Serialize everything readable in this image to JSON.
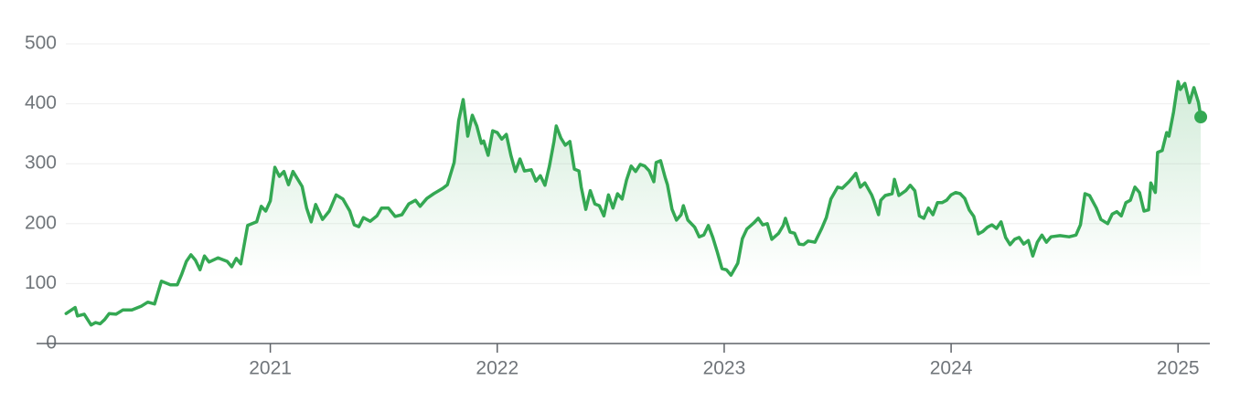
{
  "chart_data": {
    "type": "line",
    "color": "#34a853",
    "grid": true,
    "end_marker": true,
    "xlim": [
      2019.97,
      2025.14
    ],
    "xticks": [
      2021,
      2022,
      2023,
      2024,
      2025
    ],
    "ylim": [
      0,
      500
    ],
    "yticks": [
      0,
      100,
      200,
      300,
      400,
      500
    ],
    "x": [
      2020.1,
      2020.14,
      2020.15,
      2020.18,
      2020.21,
      2020.23,
      2020.25,
      2020.27,
      2020.29,
      2020.32,
      2020.35,
      2020.39,
      2020.43,
      2020.46,
      2020.49,
      2020.52,
      2020.56,
      2020.59,
      2020.61,
      2020.63,
      2020.65,
      2020.67,
      2020.69,
      2020.71,
      2020.73,
      2020.77,
      2020.81,
      2020.83,
      2020.85,
      2020.87,
      2020.9,
      2020.94,
      2020.96,
      2020.98,
      2021.0,
      2021.02,
      2021.04,
      2021.06,
      2021.08,
      2021.1,
      2021.14,
      2021.16,
      2021.18,
      2021.2,
      2021.23,
      2021.26,
      2021.29,
      2021.32,
      2021.35,
      2021.37,
      2021.39,
      2021.41,
      2021.44,
      2021.47,
      2021.49,
      2021.52,
      2021.55,
      2021.58,
      2021.61,
      2021.64,
      2021.66,
      2021.69,
      2021.72,
      2021.76,
      2021.78,
      2021.81,
      2021.83,
      2021.85,
      2021.87,
      2021.89,
      2021.91,
      2021.93,
      2021.94,
      2021.96,
      2021.98,
      2022.0,
      2022.02,
      2022.04,
      2022.06,
      2022.08,
      2022.1,
      2022.12,
      2022.15,
      2022.17,
      2022.19,
      2022.21,
      2022.23,
      2022.25,
      2022.26,
      2022.28,
      2022.3,
      2022.32,
      2022.34,
      2022.36,
      2022.37,
      2022.39,
      2022.41,
      2022.43,
      2022.45,
      2022.47,
      2022.49,
      2022.51,
      2022.53,
      2022.55,
      2022.57,
      2022.59,
      2022.61,
      2022.63,
      2022.65,
      2022.67,
      2022.69,
      2022.7,
      2022.72,
      2022.74,
      2022.75,
      2022.77,
      2022.79,
      2022.81,
      2022.82,
      2022.84,
      2022.87,
      2022.89,
      2022.91,
      2022.93,
      2022.95,
      2022.97,
      2022.99,
      2023.01,
      2023.03,
      2023.06,
      2023.08,
      2023.1,
      2023.13,
      2023.15,
      2023.17,
      2023.19,
      2023.21,
      2023.24,
      2023.26,
      2023.27,
      2023.29,
      2023.31,
      2023.33,
      2023.35,
      2023.37,
      2023.4,
      2023.43,
      2023.45,
      2023.47,
      2023.5,
      2023.52,
      2023.55,
      2023.57,
      2023.58,
      2023.6,
      2023.62,
      2023.65,
      2023.66,
      2023.68,
      2023.69,
      2023.71,
      2023.74,
      2023.75,
      2023.77,
      2023.8,
      2023.82,
      2023.84,
      2023.86,
      2023.88,
      2023.9,
      2023.92,
      2023.94,
      2023.96,
      2023.98,
      2024.0,
      2024.02,
      2024.04,
      2024.06,
      2024.08,
      2024.1,
      2024.12,
      2024.14,
      2024.16,
      2024.18,
      2024.2,
      2024.22,
      2024.24,
      2024.26,
      2024.28,
      2024.3,
      2024.32,
      2024.34,
      2024.36,
      2024.38,
      2024.4,
      2024.42,
      2024.44,
      2024.48,
      2024.52,
      2024.55,
      2024.57,
      2024.59,
      2024.61,
      2024.64,
      2024.66,
      2024.69,
      2024.71,
      2024.73,
      2024.75,
      2024.77,
      2024.79,
      2024.81,
      2024.83,
      2024.85,
      2024.87,
      2024.88,
      2024.9,
      2024.91,
      2024.93,
      2024.95,
      2024.96,
      2024.98,
      2025.0,
      2025.01,
      2025.03,
      2025.05,
      2025.07,
      2025.09,
      2025.1
    ],
    "values": [
      50,
      60,
      46,
      49,
      31,
      35,
      33,
      40,
      50,
      49,
      56,
      56,
      62,
      69,
      66,
      104,
      98,
      98,
      116,
      137,
      148,
      139,
      123,
      146,
      136,
      143,
      137,
      128,
      142,
      133,
      197,
      203,
      229,
      221,
      238,
      294,
      279,
      287,
      265,
      287,
      262,
      226,
      203,
      232,
      207,
      221,
      248,
      241,
      221,
      198,
      195,
      210,
      204,
      213,
      226,
      226,
      212,
      215,
      233,
      239,
      229,
      242,
      250,
      259,
      265,
      302,
      372,
      407,
      346,
      381,
      363,
      334,
      338,
      314,
      355,
      352,
      341,
      349,
      314,
      287,
      308,
      288,
      290,
      271,
      280,
      264,
      296,
      337,
      363,
      343,
      331,
      337,
      291,
      288,
      261,
      224,
      255,
      233,
      230,
      213,
      248,
      226,
      250,
      241,
      273,
      296,
      287,
      299,
      296,
      288,
      270,
      302,
      305,
      277,
      265,
      224,
      206,
      215,
      230,
      206,
      194,
      178,
      181,
      197,
      177,
      152,
      125,
      123,
      114,
      134,
      175,
      191,
      201,
      209,
      198,
      200,
      174,
      184,
      197,
      209,
      186,
      184,
      166,
      165,
      171,
      169,
      192,
      210,
      241,
      261,
      259,
      270,
      279,
      284,
      261,
      268,
      248,
      238,
      215,
      239,
      247,
      250,
      274,
      247,
      255,
      264,
      255,
      213,
      209,
      226,
      215,
      235,
      235,
      239,
      248,
      252,
      250,
      242,
      223,
      212,
      183,
      187,
      194,
      198,
      192,
      203,
      177,
      165,
      174,
      177,
      166,
      172,
      146,
      169,
      181,
      169,
      178,
      180,
      178,
      181,
      198,
      250,
      247,
      226,
      207,
      200,
      216,
      220,
      213,
      235,
      239,
      261,
      252,
      221,
      223,
      268,
      252,
      319,
      322,
      352,
      346,
      386,
      437,
      424,
      434,
      402,
      427,
      402,
      378
    ]
  }
}
